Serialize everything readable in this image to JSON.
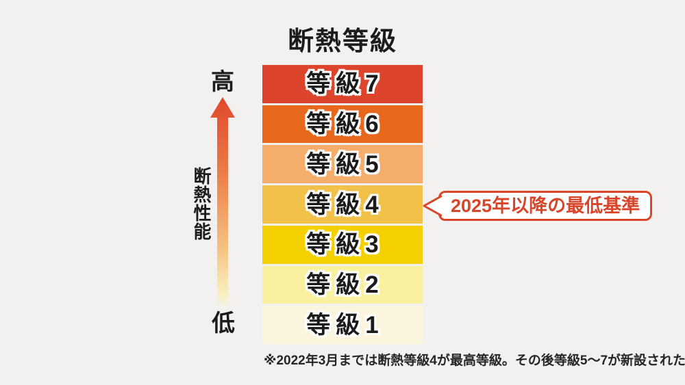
{
  "title": "断熱等級",
  "axis": {
    "high_label": "高",
    "low_label": "低",
    "axis_label": "断熱性能"
  },
  "grades": [
    {
      "label": "等級7",
      "color": "#DC452C"
    },
    {
      "label": "等級6",
      "color": "#E7681C"
    },
    {
      "label": "等級5",
      "color": "#F5AD6B"
    },
    {
      "label": "等級4",
      "color": "#F2C14A"
    },
    {
      "label": "等級3",
      "color": "#F5D000"
    },
    {
      "label": "等級2",
      "color": "#F9F0A0"
    },
    {
      "label": "等級1",
      "color": "#FAF5DC"
    }
  ],
  "callout": {
    "text": "2025年以降の最低基準",
    "points_to": "等級4",
    "accent_color": "#D8462A"
  },
  "footnote": "※2022年3月までは断熱等級4が最高等級。その後等級5〜7が新設された。",
  "colors": {
    "background": "#F2F1EF",
    "text": "#1C1C1C"
  }
}
